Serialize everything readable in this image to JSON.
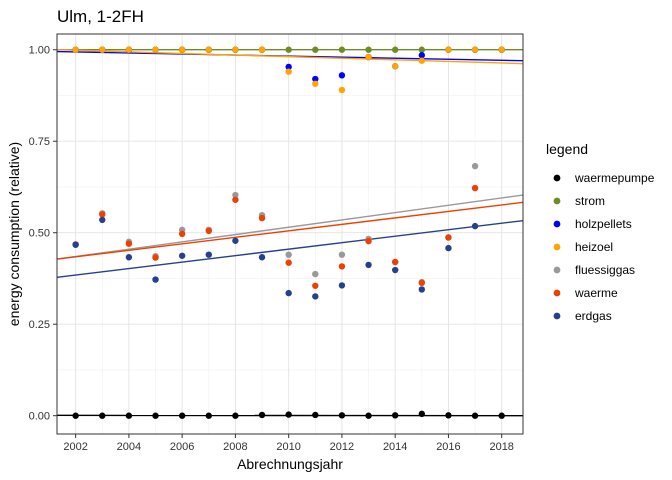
{
  "chart_data": {
    "type": "scatter",
    "title": "Ulm, 1-2FH",
    "xlabel": "Abrechnungsjahr",
    "ylabel": "energy consumption (relative)",
    "xlim": [
      2001.3,
      2018.8
    ],
    "ylim": [
      -0.05,
      1.043
    ],
    "xticks": [
      "2002",
      "2004",
      "2006",
      "2008",
      "2010",
      "2012",
      "2014",
      "2016",
      "2018"
    ],
    "yticks": [
      "0.00",
      "0.25",
      "0.50",
      "0.75",
      "1.00"
    ],
    "grid": true,
    "legend": {
      "title": "legend",
      "position": "right"
    },
    "series": [
      {
        "name": "waermepumpe",
        "color": "#000000",
        "points": [
          [
            2002,
            0.0
          ],
          [
            2003,
            0.0
          ],
          [
            2004,
            0.0
          ],
          [
            2005,
            0.0
          ],
          [
            2006,
            0.0
          ],
          [
            2007,
            0.0
          ],
          [
            2008,
            0.0
          ],
          [
            2009,
            0.002
          ],
          [
            2010,
            0.003
          ],
          [
            2011,
            0.002
          ],
          [
            2012,
            0.001
          ],
          [
            2013,
            0.0
          ],
          [
            2014,
            0.001
          ],
          [
            2015,
            0.005
          ],
          [
            2016,
            0.001
          ],
          [
            2017,
            0.0
          ],
          [
            2018,
            0.0
          ]
        ],
        "trend": [
          [
            2001.3,
            0.001
          ],
          [
            2018.8,
            0.0
          ]
        ]
      },
      {
        "name": "strom",
        "color": "#6b8e23",
        "points": [
          [
            2002,
            1.0
          ],
          [
            2003,
            1.0
          ],
          [
            2004,
            1.0
          ],
          [
            2005,
            1.0
          ],
          [
            2006,
            1.0
          ],
          [
            2007,
            1.0
          ],
          [
            2008,
            1.0
          ],
          [
            2009,
            1.0
          ],
          [
            2010,
            1.0
          ],
          [
            2011,
            1.0
          ],
          [
            2012,
            1.0
          ],
          [
            2013,
            1.0
          ],
          [
            2014,
            1.0
          ],
          [
            2015,
            1.0
          ],
          [
            2016,
            1.0
          ],
          [
            2017,
            1.0
          ],
          [
            2018,
            1.0
          ]
        ],
        "trend": [
          [
            2001.3,
            1.0
          ],
          [
            2018.8,
            1.0
          ]
        ]
      },
      {
        "name": "holzpellets",
        "color": "#0000ff",
        "points": [
          [
            2002,
            1.0
          ],
          [
            2003,
            1.0
          ],
          [
            2004,
            1.0
          ],
          [
            2005,
            1.0
          ],
          [
            2006,
            1.0
          ],
          [
            2007,
            1.0
          ],
          [
            2008,
            1.0
          ],
          [
            2009,
            1.0
          ],
          [
            2010,
            0.953
          ],
          [
            2011,
            0.92
          ],
          [
            2012,
            0.93
          ],
          [
            2013,
            0.98
          ],
          [
            2014,
            0.955
          ],
          [
            2015,
            0.985
          ],
          [
            2016,
            1.0
          ],
          [
            2017,
            1.0
          ],
          [
            2018,
            1.0
          ]
        ],
        "trend": [
          [
            2001.3,
            0.995
          ],
          [
            2018.8,
            0.97
          ]
        ]
      },
      {
        "name": "heizoel",
        "color": "#ffa500",
        "points": [
          [
            2002,
            1.0
          ],
          [
            2003,
            1.0
          ],
          [
            2004,
            1.0
          ],
          [
            2005,
            1.0
          ],
          [
            2006,
            1.0
          ],
          [
            2007,
            1.0
          ],
          [
            2008,
            1.0
          ],
          [
            2009,
            1.0
          ],
          [
            2010,
            0.94
          ],
          [
            2011,
            0.907
          ],
          [
            2012,
            0.89
          ],
          [
            2013,
            0.98
          ],
          [
            2014,
            0.955
          ],
          [
            2015,
            0.97
          ],
          [
            2016,
            1.0
          ],
          [
            2017,
            1.0
          ],
          [
            2018,
            1.0
          ]
        ],
        "trend": [
          [
            2001.3,
            1.0
          ],
          [
            2018.8,
            0.962
          ]
        ]
      },
      {
        "name": "fluessiggas",
        "color": "#999999",
        "points": [
          [
            2002,
            0.468
          ],
          [
            2003,
            0.553
          ],
          [
            2004,
            0.475
          ],
          [
            2005,
            0.436
          ],
          [
            2006,
            0.508
          ],
          [
            2007,
            0.508
          ],
          [
            2008,
            0.603
          ],
          [
            2009,
            0.548
          ],
          [
            2010,
            0.44
          ],
          [
            2011,
            0.387
          ],
          [
            2012,
            0.44
          ],
          [
            2013,
            0.483
          ],
          [
            2014,
            0.42
          ],
          [
            2015,
            0.365
          ],
          [
            2016,
            0.487
          ],
          [
            2017,
            0.682
          ]
        ],
        "trend": [
          [
            2001.3,
            0.428
          ],
          [
            2018.8,
            0.603
          ]
        ]
      },
      {
        "name": "waerme",
        "color": "#ee4000",
        "points": [
          [
            2002,
            0.468
          ],
          [
            2003,
            0.55
          ],
          [
            2004,
            0.47
          ],
          [
            2005,
            0.432
          ],
          [
            2006,
            0.497
          ],
          [
            2007,
            0.505
          ],
          [
            2008,
            0.59
          ],
          [
            2009,
            0.54
          ],
          [
            2010,
            0.418
          ],
          [
            2011,
            0.355
          ],
          [
            2012,
            0.408
          ],
          [
            2013,
            0.477
          ],
          [
            2014,
            0.42
          ],
          [
            2015,
            0.363
          ],
          [
            2016,
            0.487
          ],
          [
            2017,
            0.622
          ]
        ],
        "trend": [
          [
            2001.3,
            0.428
          ],
          [
            2018.8,
            0.583
          ]
        ]
      },
      {
        "name": "erdgas",
        "color": "#27408b",
        "points": [
          [
            2002,
            0.467
          ],
          [
            2003,
            0.535
          ],
          [
            2004,
            0.433
          ],
          [
            2005,
            0.372
          ],
          [
            2006,
            0.437
          ],
          [
            2007,
            0.44
          ],
          [
            2008,
            0.478
          ],
          [
            2009,
            0.433
          ],
          [
            2010,
            0.335
          ],
          [
            2011,
            0.326
          ],
          [
            2012,
            0.356
          ],
          [
            2013,
            0.412
          ],
          [
            2014,
            0.398
          ],
          [
            2015,
            0.345
          ],
          [
            2016,
            0.458
          ],
          [
            2017,
            0.518
          ]
        ],
        "trend": [
          [
            2001.3,
            0.378
          ],
          [
            2018.8,
            0.533
          ]
        ]
      }
    ]
  }
}
